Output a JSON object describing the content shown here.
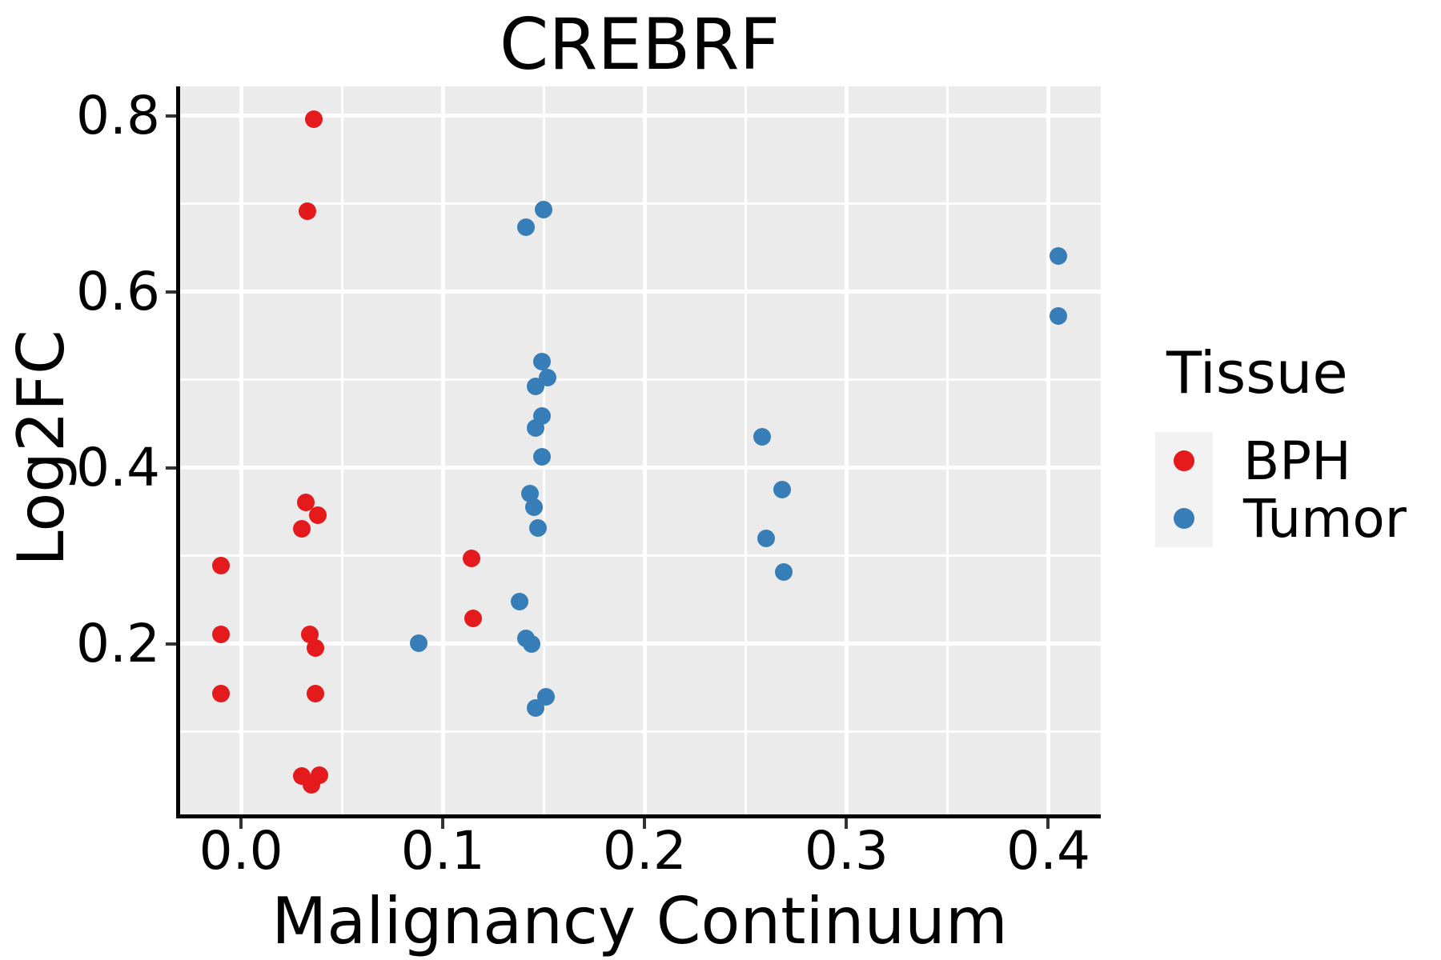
{
  "chart_data": {
    "type": "scatter",
    "title": "CREBRF",
    "xlabel": "Malignancy Continuum",
    "ylabel": "Log2FC",
    "xlim": [
      -0.031,
      0.426
    ],
    "ylim": [
      0.0045,
      0.8336
    ],
    "grid": true,
    "x_ticks": {
      "values": [
        0.0,
        0.1,
        0.2,
        0.3,
        0.4
      ],
      "labels": [
        "0.0",
        "0.1",
        "0.2",
        "0.3",
        "0.4"
      ]
    },
    "y_ticks": {
      "values": [
        0.2,
        0.4,
        0.6,
        0.8
      ],
      "labels": [
        "0.2",
        "0.4",
        "0.6",
        "0.8"
      ]
    },
    "x_minor_gridlines": [
      0.05,
      0.15,
      0.25,
      0.35
    ],
    "y_minor_gridlines": [
      0.1,
      0.3,
      0.5,
      0.7
    ],
    "legend": {
      "title": "Tissue",
      "position": "right",
      "entries": [
        {
          "label": "BPH",
          "color": "#E41A1C"
        },
        {
          "label": "Tumor",
          "color": "#377EB8"
        }
      ]
    },
    "series": [
      {
        "name": "BPH",
        "color": "#E41A1C",
        "points": [
          [
            -0.01,
            0.289
          ],
          [
            -0.01,
            0.211
          ],
          [
            -0.01,
            0.144
          ],
          [
            0.036,
            0.796
          ],
          [
            0.033,
            0.692
          ],
          [
            0.032,
            0.361
          ],
          [
            0.038,
            0.346
          ],
          [
            0.03,
            0.331
          ],
          [
            0.034,
            0.211
          ],
          [
            0.037,
            0.195
          ],
          [
            0.037,
            0.144
          ],
          [
            0.03,
            0.05
          ],
          [
            0.039,
            0.051
          ],
          [
            0.035,
            0.04
          ],
          [
            0.114,
            0.297
          ],
          [
            0.115,
            0.229
          ]
        ]
      },
      {
        "name": "Tumor",
        "color": "#377EB8",
        "points": [
          [
            0.088,
            0.201
          ],
          [
            0.15,
            0.694
          ],
          [
            0.141,
            0.674
          ],
          [
            0.149,
            0.521
          ],
          [
            0.152,
            0.503
          ],
          [
            0.146,
            0.493
          ],
          [
            0.149,
            0.459
          ],
          [
            0.146,
            0.445
          ],
          [
            0.149,
            0.413
          ],
          [
            0.143,
            0.371
          ],
          [
            0.145,
            0.355
          ],
          [
            0.147,
            0.332
          ],
          [
            0.138,
            0.248
          ],
          [
            0.141,
            0.206
          ],
          [
            0.144,
            0.2
          ],
          [
            0.151,
            0.14
          ],
          [
            0.146,
            0.127
          ],
          [
            0.258,
            0.435
          ],
          [
            0.268,
            0.375
          ],
          [
            0.26,
            0.32
          ],
          [
            0.269,
            0.282
          ],
          [
            0.405,
            0.641
          ],
          [
            0.405,
            0.573
          ]
        ]
      }
    ]
  },
  "colors": {
    "panel_background": "#EBEBEB",
    "gridline": "#FFFFFF",
    "axis_line": "#000000",
    "tick_mark": "#333333",
    "text": "#000000",
    "legend_key_background": "#F2F2F2",
    "bph": "#E41A1C",
    "tumor": "#377EB8"
  }
}
